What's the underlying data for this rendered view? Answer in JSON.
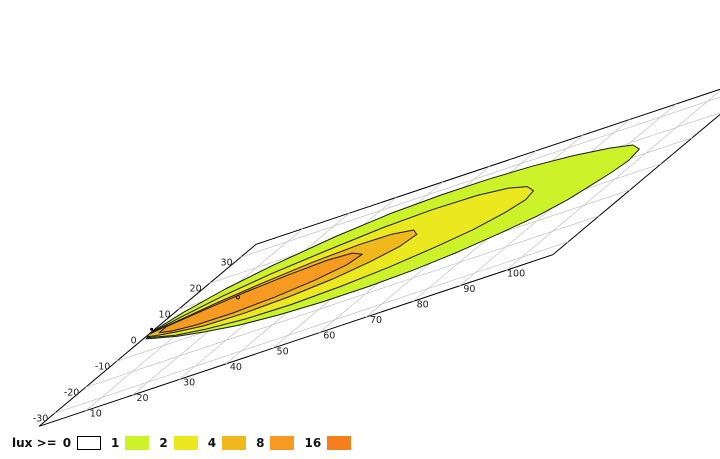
{
  "chart_data": {
    "type": "heatmap",
    "subtype": "isolux contour plot on perspective ground plane",
    "x_axis": {
      "ticks": [
        10,
        20,
        30,
        40,
        50,
        60,
        70,
        80,
        90,
        100
      ],
      "range": [
        0,
        110
      ]
    },
    "y_axis": {
      "ticks": [
        30,
        20,
        10,
        0,
        -10,
        -20,
        -30
      ],
      "range": [
        -35,
        35
      ]
    },
    "grid": true,
    "legend": {
      "title": "lux >=",
      "placement": "bottom-left",
      "levels": [
        {
          "value": "0",
          "color": "#ffffff"
        },
        {
          "value": "1",
          "color": "#ccf22a"
        },
        {
          "value": "2",
          "color": "#ece81f"
        },
        {
          "value": "4",
          "color": "#f0b81d"
        },
        {
          "value": "8",
          "color": "#f79a22"
        },
        {
          "value": "16",
          "color": "#f57f1d"
        }
      ]
    },
    "contours": [
      {
        "level": 1,
        "color": "#ccf22a",
        "points": [
          [
            0,
            1
          ],
          [
            3,
            7
          ],
          [
            8,
            13
          ],
          [
            15,
            18
          ],
          [
            25,
            23
          ],
          [
            35,
            26
          ],
          [
            45,
            27
          ],
          [
            55,
            27
          ],
          [
            65,
            26
          ],
          [
            75,
            24
          ],
          [
            85,
            21
          ],
          [
            92,
            18
          ],
          [
            96,
            14
          ],
          [
            97,
            9
          ],
          [
            96,
            5
          ],
          [
            94,
            1
          ],
          [
            92,
            -3
          ],
          [
            88,
            -7
          ],
          [
            82,
            -10
          ],
          [
            75,
            -13
          ],
          [
            67,
            -15
          ],
          [
            58,
            -16
          ],
          [
            48,
            -16
          ],
          [
            38,
            -15
          ],
          [
            28,
            -13
          ],
          [
            19,
            -10
          ],
          [
            11,
            -7
          ],
          [
            5,
            -4
          ],
          [
            1,
            -2
          ]
        ]
      },
      {
        "level": 2,
        "color": "#ece81f",
        "points": [
          [
            0,
            0.5
          ],
          [
            4,
            4.5
          ],
          [
            10,
            9
          ],
          [
            18,
            13
          ],
          [
            28,
            16
          ],
          [
            38,
            18.5
          ],
          [
            48,
            19.5
          ],
          [
            58,
            19
          ],
          [
            66,
            17
          ],
          [
            72,
            14
          ],
          [
            76,
            10
          ],
          [
            77,
            6
          ],
          [
            75,
            2
          ],
          [
            71,
            -2
          ],
          [
            65,
            -5
          ],
          [
            57,
            -8
          ],
          [
            48,
            -10
          ],
          [
            38,
            -11
          ],
          [
            28,
            -10.5
          ],
          [
            18,
            -8.5
          ],
          [
            10,
            -6
          ],
          [
            4,
            -3
          ],
          [
            1,
            -1.5
          ]
        ]
      },
      {
        "level": 4,
        "color": "#f0b81d",
        "points": [
          [
            0,
            0.3
          ],
          [
            5,
            3
          ],
          [
            11,
            6
          ],
          [
            19,
            9
          ],
          [
            28,
            11.5
          ],
          [
            37,
            12.8
          ],
          [
            44,
            12.5
          ],
          [
            50,
            10.5
          ],
          [
            53,
            7
          ],
          [
            52,
            3
          ],
          [
            48,
            -0.5
          ],
          [
            42,
            -3.5
          ],
          [
            34,
            -5.5
          ],
          [
            25,
            -6.5
          ],
          [
            16,
            -6
          ],
          [
            9,
            -4
          ],
          [
            3,
            -2
          ],
          [
            0.5,
            -0.8
          ]
        ]
      },
      {
        "level": 8,
        "color": "#f79a22",
        "points": [
          [
            3,
            1.5
          ],
          [
            9,
            4
          ],
          [
            16,
            6.5
          ],
          [
            24,
            8.5
          ],
          [
            32,
            9.6
          ],
          [
            38,
            8.8
          ],
          [
            42,
            6
          ],
          [
            41,
            2.5
          ],
          [
            36,
            -0.5
          ],
          [
            29,
            -2.8
          ],
          [
            21,
            -4
          ],
          [
            13,
            -3.8
          ],
          [
            7,
            -2.5
          ],
          [
            3,
            -0.8
          ]
        ]
      }
    ]
  }
}
